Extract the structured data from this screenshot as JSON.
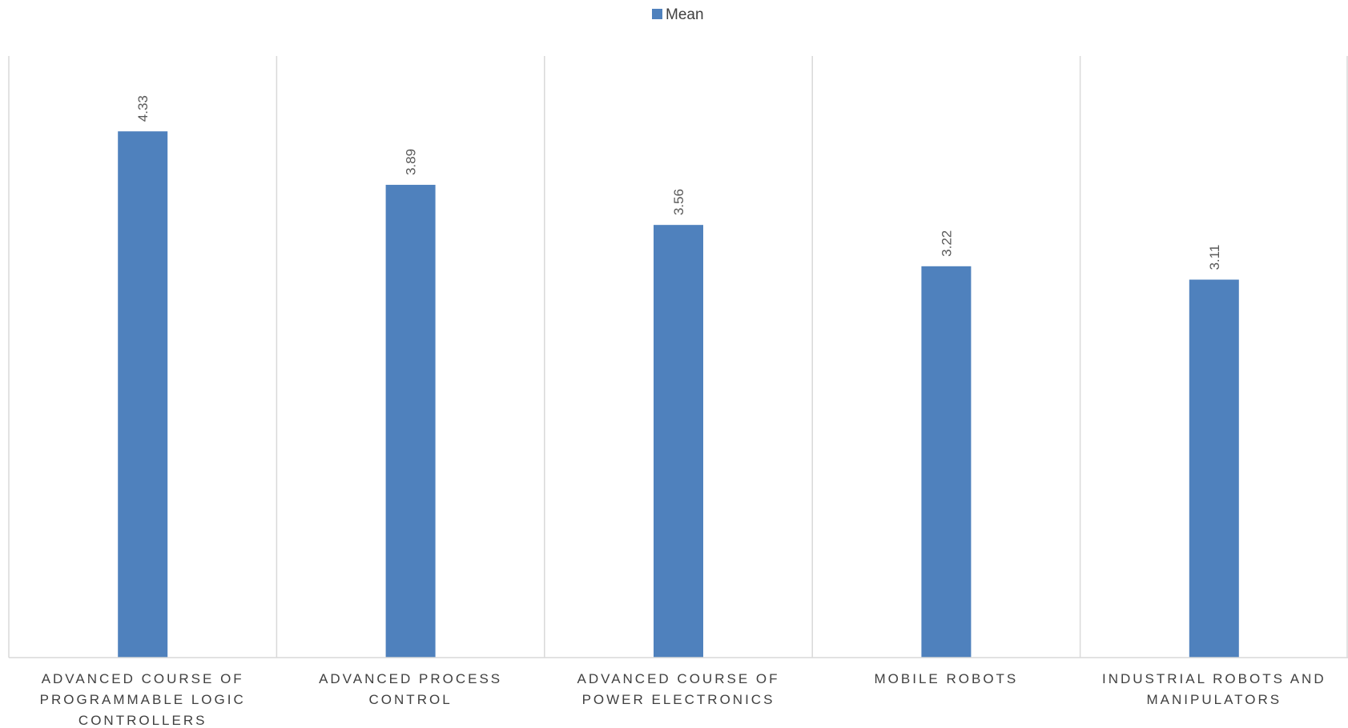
{
  "chart_data": {
    "type": "bar",
    "categories": [
      "ADVANCED COURSE OF PROGRAMMABLE LOGIC CONTROLLERS",
      "ADVANCED PROCESS CONTROL",
      "ADVANCED COURSE OF POWER ELECTRONICS",
      "MOBILE ROBOTS",
      "INDUSTRIAL ROBOTS AND MANIPULATORS"
    ],
    "category_lines": [
      [
        "ADVANCED COURSE OF",
        "PROGRAMMABLE LOGIC",
        "CONTROLLERS"
      ],
      [
        "ADVANCED PROCESS",
        "CONTROL"
      ],
      [
        "ADVANCED COURSE OF",
        "POWER ELECTRONICS"
      ],
      [
        "MOBILE ROBOTS"
      ],
      [
        "INDUSTRIAL ROBOTS AND",
        "MANIPULATORS"
      ]
    ],
    "series": [
      {
        "name": "Mean",
        "color": "#4f81bd",
        "values": [
          4.33,
          3.89,
          3.56,
          3.22,
          3.11
        ],
        "labels": [
          "4.33",
          "3.89",
          "3.56",
          "3.22",
          "3.11"
        ]
      }
    ],
    "ylim": [
      0,
      4.95
    ],
    "grid": "vertical category separators",
    "legend": "top-center",
    "title": "",
    "xlabel": "",
    "ylabel": ""
  }
}
